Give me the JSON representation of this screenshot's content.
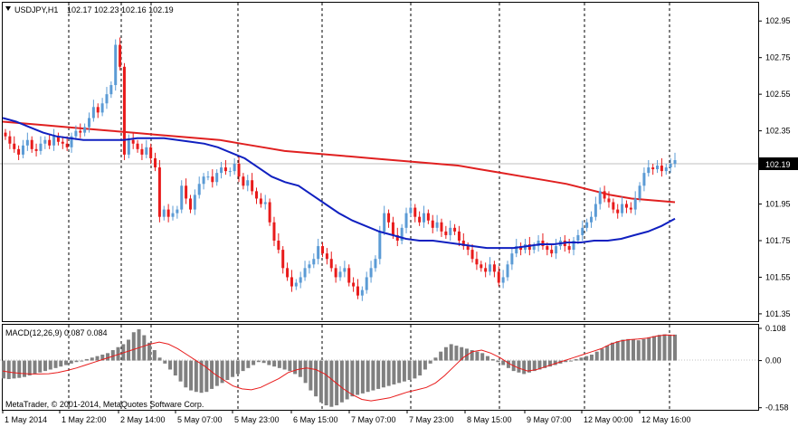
{
  "header": {
    "symbol": "USDJPY,H1",
    "ohlc": "102.17 102.23 102.16 102.19",
    "menu_icon": "triangle-down-icon"
  },
  "macd_label": "MACD(12,26,9) 0.087 0.084",
  "copyright": "MetaTrader, © 2001-2014, MetaQuotes Software Corp.",
  "chart_data": {
    "type": "candlestick",
    "symbol": "USDJPY",
    "timeframe": "H1",
    "price_axis": {
      "ticks": [
        "102.95",
        "102.75",
        "102.55",
        "102.35",
        "102.15",
        "101.95",
        "101.75",
        "101.55",
        "101.35"
      ],
      "range": [
        101.31,
        103.05
      ],
      "current_price": "102.19"
    },
    "macd_axis": {
      "ticks": [
        "0.108",
        "0.00",
        "-0.158"
      ],
      "range": [
        -0.165,
        0.12
      ]
    },
    "time_labels": [
      "1 May 2014",
      "1 May 22:00",
      "2 May 14:00",
      "5 May 07:00",
      "5 May 23:00",
      "6 May 15:00",
      "7 May 07:00",
      "7 May 23:00",
      "8 May 15:00",
      "9 May 07:00",
      "12 May 00:00",
      "12 May 16:00"
    ],
    "grid": "vertical dashed",
    "colors": {
      "bull": "#5b9bd5",
      "bear": "#e81b1b",
      "fast_ma": "#1020c0",
      "slow_ma": "#e02020",
      "macd_hist": "#808080",
      "macd_signal": "#e81b1b",
      "price_line": "#c0c0c0"
    },
    "price_series": [
      {
        "name": "close",
        "values": [
          102.32,
          102.28,
          102.25,
          102.22,
          102.27,
          102.3,
          102.25,
          102.24,
          102.28,
          102.3,
          102.27,
          102.32,
          102.29,
          102.28,
          102.26,
          102.32,
          102.35,
          102.34,
          102.37,
          102.42,
          102.48,
          102.45,
          102.5,
          102.55,
          102.6,
          102.82,
          102.7,
          102.22,
          102.3,
          102.28,
          102.25,
          102.22,
          102.26,
          102.2,
          102.15,
          101.88,
          101.92,
          101.88,
          101.9,
          101.92,
          102.05,
          101.98,
          101.92,
          102.0,
          102.06,
          102.1,
          102.1,
          102.07,
          102.12,
          102.15,
          102.13,
          102.13,
          102.17,
          102.1,
          102.05,
          102.08,
          102.02,
          101.98,
          101.95,
          101.96,
          101.85,
          101.75,
          101.7,
          101.6,
          101.55,
          101.5,
          101.52,
          101.55,
          101.6,
          101.62,
          101.65,
          101.72,
          101.68,
          101.65,
          101.6,
          101.55,
          101.58,
          101.6,
          101.52,
          101.5,
          101.45,
          101.48,
          101.55,
          101.6,
          101.65,
          101.8,
          101.9,
          101.85,
          101.78,
          101.75,
          101.82,
          101.9,
          101.93,
          101.88,
          101.85,
          101.9,
          101.86,
          101.82,
          101.85,
          101.8,
          101.78,
          101.82,
          101.8,
          101.75,
          101.72,
          101.7,
          101.65,
          101.62,
          101.6,
          101.58,
          101.62,
          101.58,
          101.52,
          101.55,
          101.62,
          101.68,
          101.72,
          101.7,
          101.73,
          101.7,
          101.72,
          101.75,
          101.72,
          101.7,
          101.68,
          101.72,
          101.75,
          101.72,
          101.7,
          101.75,
          101.78,
          101.82,
          101.85,
          101.88,
          101.95,
          102.02,
          101.98,
          101.96,
          101.92,
          101.9,
          101.95,
          101.93,
          101.92,
          101.98,
          102.05,
          102.12,
          102.15,
          102.14,
          102.16,
          102.13,
          102.15,
          102.17,
          102.19
        ]
      },
      {
        "name": "fast_ma",
        "values": [
          102.42,
          102.4,
          102.37,
          102.34,
          102.32,
          102.31,
          102.3,
          102.3,
          102.3,
          102.3,
          102.31,
          102.31,
          102.31,
          102.3,
          102.29,
          102.28,
          102.26,
          102.23,
          102.2,
          102.15,
          102.1,
          102.07,
          102.05,
          102.0,
          101.95,
          101.9,
          101.86,
          101.83,
          101.8,
          101.78,
          101.76,
          101.75,
          101.75,
          101.74,
          101.73,
          101.72,
          101.71,
          101.71,
          101.71,
          101.72,
          101.73,
          101.73,
          101.74,
          101.74,
          101.75,
          101.75,
          101.76,
          101.78,
          101.8,
          101.83,
          101.87
        ]
      }
    ],
    "slow_ma": [
      102.4,
      102.39,
      102.38,
      102.37,
      102.36,
      102.35,
      102.34,
      102.33,
      102.32,
      102.31,
      102.3,
      102.28,
      102.26,
      102.24,
      102.23,
      102.22,
      102.21,
      102.2,
      102.19,
      102.18,
      102.17,
      102.16,
      102.14,
      102.12,
      102.1,
      102.08,
      102.06,
      102.03,
      102.0,
      101.98,
      101.97,
      101.96
    ],
    "macd_hist": [
      -0.06,
      -0.062,
      -0.06,
      -0.058,
      -0.055,
      -0.05,
      -0.045,
      -0.04,
      -0.035,
      -0.03,
      -0.025,
      -0.02,
      -0.015,
      -0.01,
      -0.005,
      0.0,
      0.005,
      0.01,
      0.015,
      0.02,
      0.025,
      0.035,
      0.045,
      0.055,
      0.07,
      0.095,
      0.105,
      0.085,
      0.06,
      0.035,
      0.01,
      -0.01,
      -0.03,
      -0.05,
      -0.07,
      -0.09,
      -0.1,
      -0.105,
      -0.108,
      -0.105,
      -0.095,
      -0.085,
      -0.075,
      -0.065,
      -0.055,
      -0.045,
      -0.035,
      -0.025,
      -0.015,
      -0.005,
      -0.008,
      -0.015,
      -0.02,
      -0.025,
      -0.03,
      -0.035,
      -0.045,
      -0.055,
      -0.075,
      -0.1,
      -0.12,
      -0.14,
      -0.15,
      -0.155,
      -0.15,
      -0.14,
      -0.13,
      -0.12,
      -0.115,
      -0.11,
      -0.105,
      -0.1,
      -0.095,
      -0.09,
      -0.085,
      -0.08,
      -0.075,
      -0.07,
      -0.065,
      -0.06,
      -0.05,
      -0.03,
      -0.01,
      0.01,
      0.03,
      0.045,
      0.055,
      0.05,
      0.045,
      0.04,
      0.035,
      0.03,
      0.025,
      0.015,
      0.005,
      -0.005,
      -0.015,
      -0.025,
      -0.035,
      -0.04,
      -0.045,
      -0.04,
      -0.035,
      -0.03,
      -0.025,
      -0.02,
      -0.015,
      -0.01,
      -0.005,
      0.0,
      0.005,
      0.01,
      0.015,
      0.02,
      0.03,
      0.04,
      0.05,
      0.06,
      0.065,
      0.07,
      0.072,
      0.07,
      0.068,
      0.072,
      0.078,
      0.082,
      0.086,
      0.088,
      0.087,
      0.087
    ],
    "macd_signal": [
      -0.035,
      -0.04,
      -0.043,
      -0.045,
      -0.045,
      -0.044,
      -0.04,
      -0.033,
      -0.025,
      -0.015,
      -0.005,
      0.005,
      0.015,
      0.025,
      0.035,
      0.045,
      0.055,
      0.062,
      0.055,
      0.04,
      0.02,
      0.0,
      -0.02,
      -0.045,
      -0.065,
      -0.085,
      -0.095,
      -0.098,
      -0.09,
      -0.075,
      -0.06,
      -0.04,
      -0.03,
      -0.025,
      -0.03,
      -0.045,
      -0.07,
      -0.095,
      -0.115,
      -0.13,
      -0.135,
      -0.13,
      -0.125,
      -0.115,
      -0.105,
      -0.098,
      -0.09,
      -0.075,
      -0.05,
      -0.02,
      0.01,
      0.03,
      0.035,
      0.025,
      0.01,
      -0.01,
      -0.025,
      -0.035,
      -0.03,
      -0.02,
      -0.01,
      0.0,
      0.01,
      0.02,
      0.03,
      0.04,
      0.055,
      0.065,
      0.07,
      0.072,
      0.075,
      0.082,
      0.086,
      0.084
    ]
  }
}
